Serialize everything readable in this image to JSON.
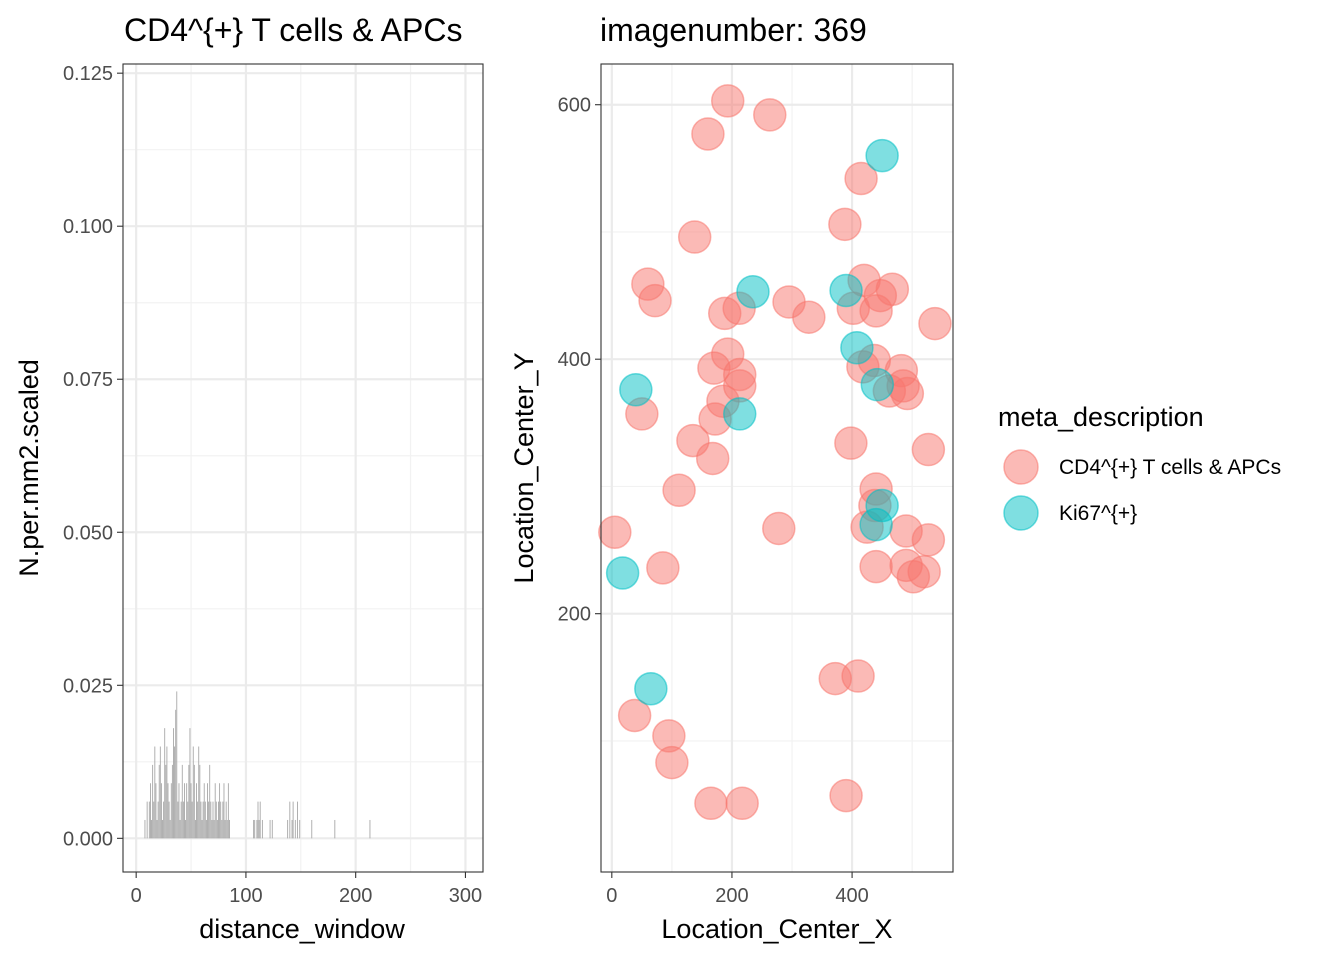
{
  "chart_data": [
    {
      "type": "bar",
      "title": "CD4^{+} T cells & APCs",
      "xlabel": "distance_window",
      "ylabel": "N.per.mm2.scaled",
      "xlim": [
        -12,
        316
      ],
      "ylim": [
        -0.0055,
        0.1265
      ],
      "x_ticks": [
        0,
        100,
        200,
        300
      ],
      "y_ticks": [
        0.0,
        0.025,
        0.05,
        0.075,
        0.1,
        0.125
      ],
      "x_tick_labels": [
        "0",
        "100",
        "200",
        "300"
      ],
      "y_tick_labels": [
        "0.000",
        "0.025",
        "0.050",
        "0.075",
        "0.100",
        "0.125"
      ],
      "grid": true,
      "bar_color": "#a6a6a6",
      "bins": [
        [
          8,
          0.003
        ],
        [
          10,
          0.006
        ],
        [
          12,
          0.006
        ],
        [
          13,
          0.009
        ],
        [
          14,
          0.003
        ],
        [
          15,
          0.012
        ],
        [
          16,
          0.006
        ],
        [
          17,
          0.015
        ],
        [
          18,
          0.009
        ],
        [
          19,
          0.003
        ],
        [
          20,
          0.006
        ],
        [
          21,
          0.012
        ],
        [
          22,
          0.015
        ],
        [
          23,
          0.009
        ],
        [
          24,
          0.003
        ],
        [
          25,
          0.006
        ],
        [
          26,
          0.018
        ],
        [
          27,
          0.012
        ],
        [
          28,
          0.015
        ],
        [
          29,
          0.009
        ],
        [
          30,
          0.006
        ],
        [
          31,
          0.003
        ],
        [
          32,
          0.009
        ],
        [
          33,
          0.012
        ],
        [
          34,
          0.018
        ],
        [
          35,
          0.015
        ],
        [
          36,
          0.021
        ],
        [
          37,
          0.024
        ],
        [
          38,
          0.006
        ],
        [
          39,
          0.009
        ],
        [
          40,
          0.003
        ],
        [
          41,
          0.006
        ],
        [
          42,
          0.012
        ],
        [
          43,
          0.006
        ],
        [
          44,
          0.009
        ],
        [
          45,
          0.003
        ],
        [
          46,
          0.009
        ],
        [
          47,
          0.006
        ],
        [
          48,
          0.012
        ],
        [
          49,
          0.018
        ],
        [
          50,
          0.009
        ],
        [
          51,
          0.006
        ],
        [
          52,
          0.015
        ],
        [
          53,
          0.012
        ],
        [
          54,
          0.003
        ],
        [
          55,
          0.009
        ],
        [
          56,
          0.006
        ],
        [
          57,
          0.015
        ],
        [
          58,
          0.012
        ],
        [
          59,
          0.006
        ],
        [
          60,
          0.003
        ],
        [
          61,
          0.006
        ],
        [
          62,
          0.009
        ],
        [
          63,
          0.006
        ],
        [
          64,
          0.003
        ],
        [
          65,
          0.009
        ],
        [
          66,
          0.006
        ],
        [
          67,
          0.012
        ],
        [
          68,
          0.006
        ],
        [
          69,
          0.003
        ],
        [
          70,
          0.006
        ],
        [
          71,
          0.003
        ],
        [
          72,
          0.009
        ],
        [
          73,
          0.006
        ],
        [
          74,
          0.003
        ],
        [
          75,
          0.006
        ],
        [
          76,
          0.009
        ],
        [
          77,
          0.006
        ],
        [
          78,
          0.003
        ],
        [
          79,
          0.006
        ],
        [
          80,
          0.009
        ],
        [
          81,
          0.003
        ],
        [
          82,
          0.006
        ],
        [
          83,
          0.003
        ],
        [
          84,
          0.009
        ],
        [
          85,
          0.003
        ],
        [
          107,
          0.003
        ],
        [
          108,
          0.003
        ],
        [
          110,
          0.003
        ],
        [
          111,
          0.006
        ],
        [
          112,
          0.003
        ],
        [
          113,
          0.006
        ],
        [
          115,
          0.003
        ],
        [
          122,
          0.003
        ],
        [
          124,
          0.003
        ],
        [
          138,
          0.003
        ],
        [
          140,
          0.006
        ],
        [
          142,
          0.003
        ],
        [
          143,
          0.006
        ],
        [
          145,
          0.003
        ],
        [
          147,
          0.006
        ],
        [
          149,
          0.003
        ],
        [
          160,
          0.003
        ],
        [
          181,
          0.003
        ],
        [
          213,
          0.003
        ]
      ]
    },
    {
      "type": "scatter",
      "title": "imagenumber:  369",
      "xlabel": "Location_Center_X",
      "ylabel": "Location_Center_Y",
      "xlim": [
        -18,
        568
      ],
      "ylim": [
        -3,
        632
      ],
      "x_ticks": [
        0,
        200,
        400
      ],
      "y_ticks": [
        200,
        400,
        600
      ],
      "x_tick_labels": [
        "0",
        "200",
        "400"
      ],
      "y_tick_labels": [
        "200",
        "400",
        "600"
      ],
      "grid": true,
      "legend_title": "meta_description",
      "legend_position": "right",
      "series": [
        {
          "name": "CD4^{+} T cells & APCs",
          "color": "#f8766d",
          "points": [
            [
              193,
              603
            ],
            [
              263,
              592
            ],
            [
              160,
              577
            ],
            [
              415,
              542
            ],
            [
              138,
              496
            ],
            [
              388,
              506
            ],
            [
              60,
              459
            ],
            [
              72,
              446
            ],
            [
              420,
              462
            ],
            [
              467,
              455
            ],
            [
              447,
              450
            ],
            [
              295,
              445
            ],
            [
              328,
              433
            ],
            [
              188,
              436
            ],
            [
              212,
              440
            ],
            [
              402,
              440
            ],
            [
              440,
              438
            ],
            [
              538,
              428
            ],
            [
              193,
              404
            ],
            [
              437,
              399
            ],
            [
              170,
              393
            ],
            [
              213,
              388
            ],
            [
              418,
              394
            ],
            [
              482,
              391
            ],
            [
              185,
              367
            ],
            [
              213,
              379
            ],
            [
              462,
              375
            ],
            [
              485,
              379
            ],
            [
              492,
              373
            ],
            [
              172,
              353
            ],
            [
              50,
              357
            ],
            [
              135,
              336
            ],
            [
              168,
              322
            ],
            [
              398,
              334
            ],
            [
              527,
              329
            ],
            [
              112,
              297
            ],
            [
              440,
              298
            ],
            [
              438,
              285
            ],
            [
              425,
              268
            ],
            [
              5,
              264
            ],
            [
              278,
              267
            ],
            [
              490,
              265
            ],
            [
              85,
              236
            ],
            [
              440,
              237
            ],
            [
              490,
              238
            ],
            [
              520,
              233
            ],
            [
              502,
              229
            ],
            [
              527,
              258
            ],
            [
              38,
              120
            ],
            [
              95,
              104
            ],
            [
              100,
              83
            ],
            [
              165,
              51
            ],
            [
              217,
              51
            ],
            [
              390,
              57
            ],
            [
              372,
              149
            ],
            [
              410,
              151
            ]
          ]
        },
        {
          "name": "Ki67^{+}",
          "color": "#00bfc4",
          "points": [
            [
              450,
              560
            ],
            [
              235,
              453
            ],
            [
              390,
              454
            ],
            [
              408,
              409
            ],
            [
              40,
              376
            ],
            [
              213,
              357
            ],
            [
              442,
              380
            ],
            [
              450,
              285
            ],
            [
              440,
              270
            ],
            [
              18,
              232
            ],
            [
              65,
              141
            ]
          ]
        }
      ]
    }
  ]
}
